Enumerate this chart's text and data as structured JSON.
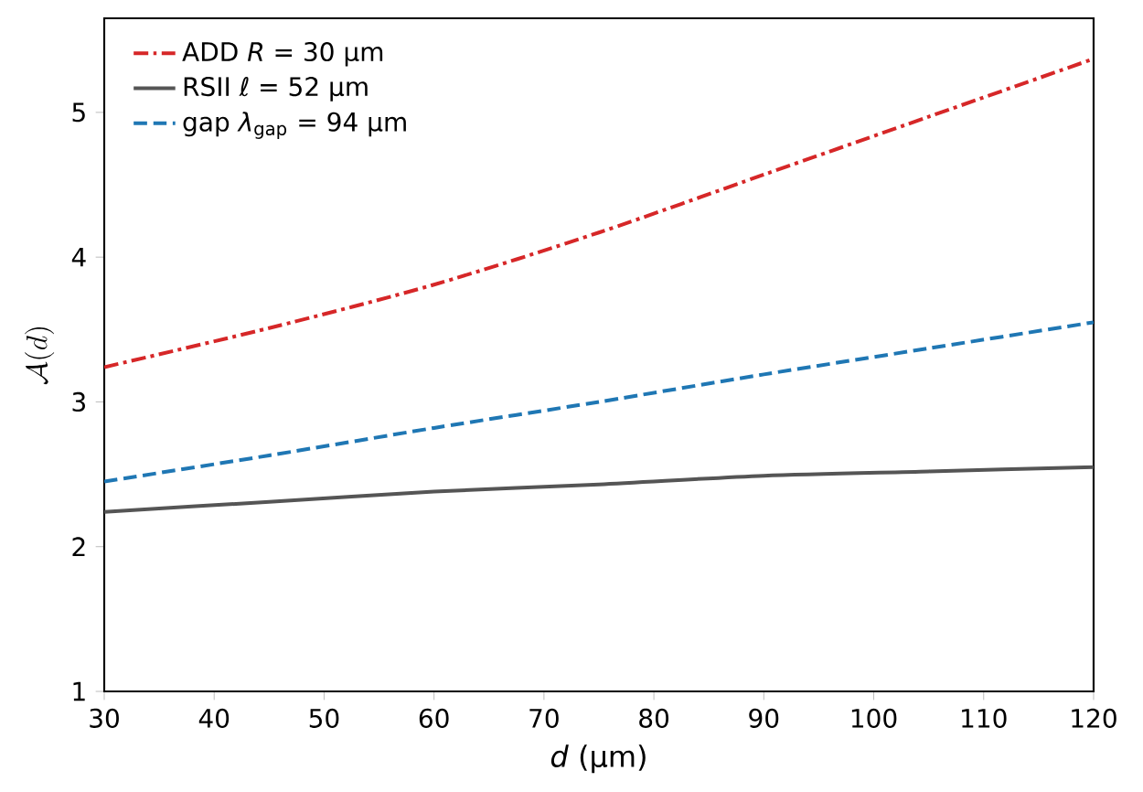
{
  "chart_data": {
    "type": "line",
    "xlabel": "*d* (μm)",
    "ylabel": "\\mathcal{A}(d)",
    "x": [
      30,
      45,
      60,
      75,
      90,
      105,
      120
    ],
    "series": [
      {
        "name": "ADD  *R* = 30 μm",
        "color": "#d62728",
        "line_style": "dashdot",
        "values": [
          3.24,
          3.51,
          3.81,
          4.17,
          4.57,
          4.97,
          5.37
        ]
      },
      {
        "name": "RSII ℓ = 52 μm",
        "color": "#555555",
        "line_style": "solid",
        "values": [
          2.24,
          2.31,
          2.38,
          2.43,
          2.49,
          2.52,
          2.55
        ]
      },
      {
        "name": "gap *λ*$_{gap}$ = 94 μm",
        "color": "#1f77b4",
        "line_style": "dashed",
        "values": [
          2.45,
          2.63,
          2.82,
          3.0,
          3.19,
          3.37,
          3.55
        ]
      }
    ],
    "xlim": [
      30,
      120
    ],
    "ylim": [
      1,
      5.65
    ],
    "xticks": [
      30,
      40,
      50,
      60,
      70,
      80,
      90,
      100,
      110,
      120
    ],
    "yticks": [
      1,
      2,
      3,
      4,
      5
    ],
    "grid": false,
    "legend": "top left",
    "marker": "none"
  }
}
